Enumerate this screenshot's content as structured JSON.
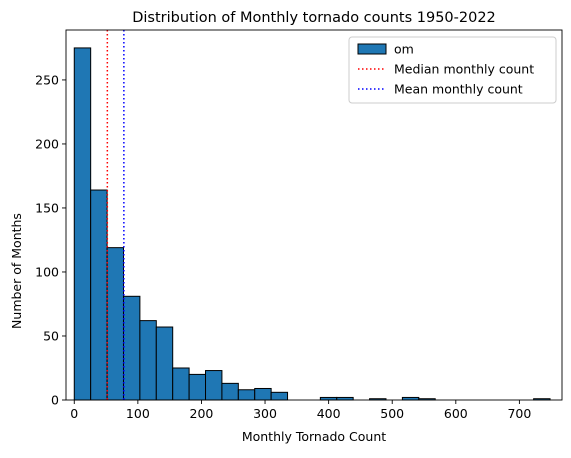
{
  "chart_data": {
    "type": "bar",
    "title": "Distribution of Monthly tornado counts 1950-2022",
    "xlabel": "Monthly Tornado Count",
    "ylabel": "Number of Months",
    "xlim": [
      -13,
      767
    ],
    "ylim": [
      0,
      289
    ],
    "xticks": [
      0,
      100,
      200,
      300,
      400,
      500,
      600,
      700
    ],
    "xtick_labels": [
      "0",
      "100",
      "200",
      "300",
      "400",
      "500",
      "600",
      "700"
    ],
    "yticks": [
      0,
      50,
      100,
      150,
      200,
      250
    ],
    "ytick_labels": [
      "0",
      "50",
      "100",
      "150",
      "200",
      "250"
    ],
    "grid": false,
    "legend_position": "top-right",
    "bar_color": "#1f77b4",
    "bar_edge_color": "#000000",
    "bin_edges": [
      0,
      25.8,
      51.6,
      77.4,
      103.2,
      129,
      154.8,
      180.6,
      206.4,
      232.2,
      258,
      283.8,
      309.6,
      335.4,
      361.2,
      387,
      412.8,
      438.6,
      464.4,
      490.2,
      516,
      541.8,
      567.6,
      593.4,
      619.2,
      645,
      670.8,
      696.6,
      722.4,
      748.2,
      774
    ],
    "counts": [
      275,
      164,
      119,
      81,
      62,
      57,
      25,
      20,
      23,
      13,
      8,
      9,
      6,
      0,
      0,
      2,
      2,
      0,
      1,
      0,
      2,
      1,
      0,
      0,
      0,
      0,
      0,
      0,
      1,
      0
    ],
    "series": [
      {
        "name": "om",
        "kind": "histogram"
      },
      {
        "name": "Median monthly count",
        "kind": "vline",
        "x": 52,
        "color": "#ff0000",
        "style": "dotted"
      },
      {
        "name": "Mean monthly count",
        "kind": "vline",
        "x": 78,
        "color": "#0000ff",
        "style": "dotted"
      }
    ]
  }
}
